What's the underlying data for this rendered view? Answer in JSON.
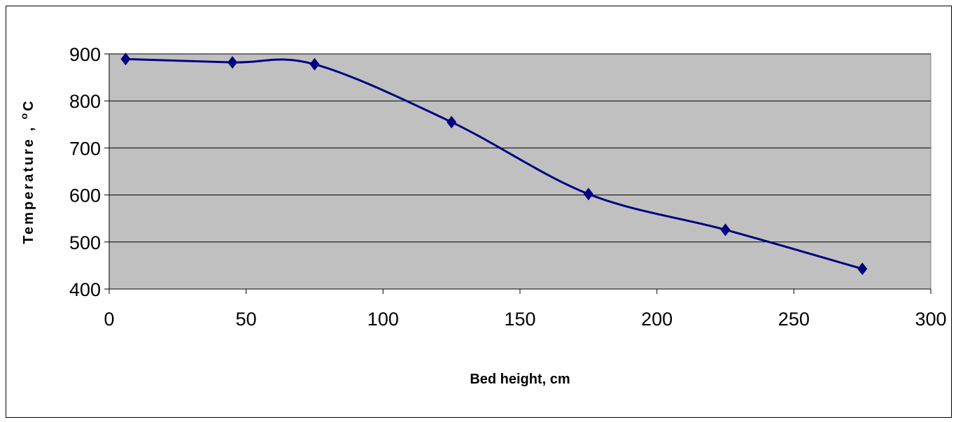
{
  "chart_data": {
    "type": "line",
    "title": "",
    "xlabel": "Bed height, cm",
    "ylabel_main": "Temperature , ",
    "ylabel_sup": "o",
    "ylabel_unit": "C",
    "xlim": [
      0,
      300
    ],
    "ylim": [
      400,
      900
    ],
    "xticks": [
      0,
      50,
      100,
      150,
      200,
      250,
      300
    ],
    "yticks": [
      400,
      500,
      600,
      700,
      800,
      900
    ],
    "grid": "horizontal",
    "legend": "none",
    "marker": "diamond",
    "series": [
      {
        "x": [
          6,
          45,
          75,
          125,
          175,
          225,
          275
        ],
        "y": [
          889,
          882,
          878,
          755,
          602,
          526,
          443
        ]
      }
    ],
    "colors": {
      "plot_background": "#c0c0c0",
      "line": "#000080",
      "gridline": "#000000"
    }
  }
}
